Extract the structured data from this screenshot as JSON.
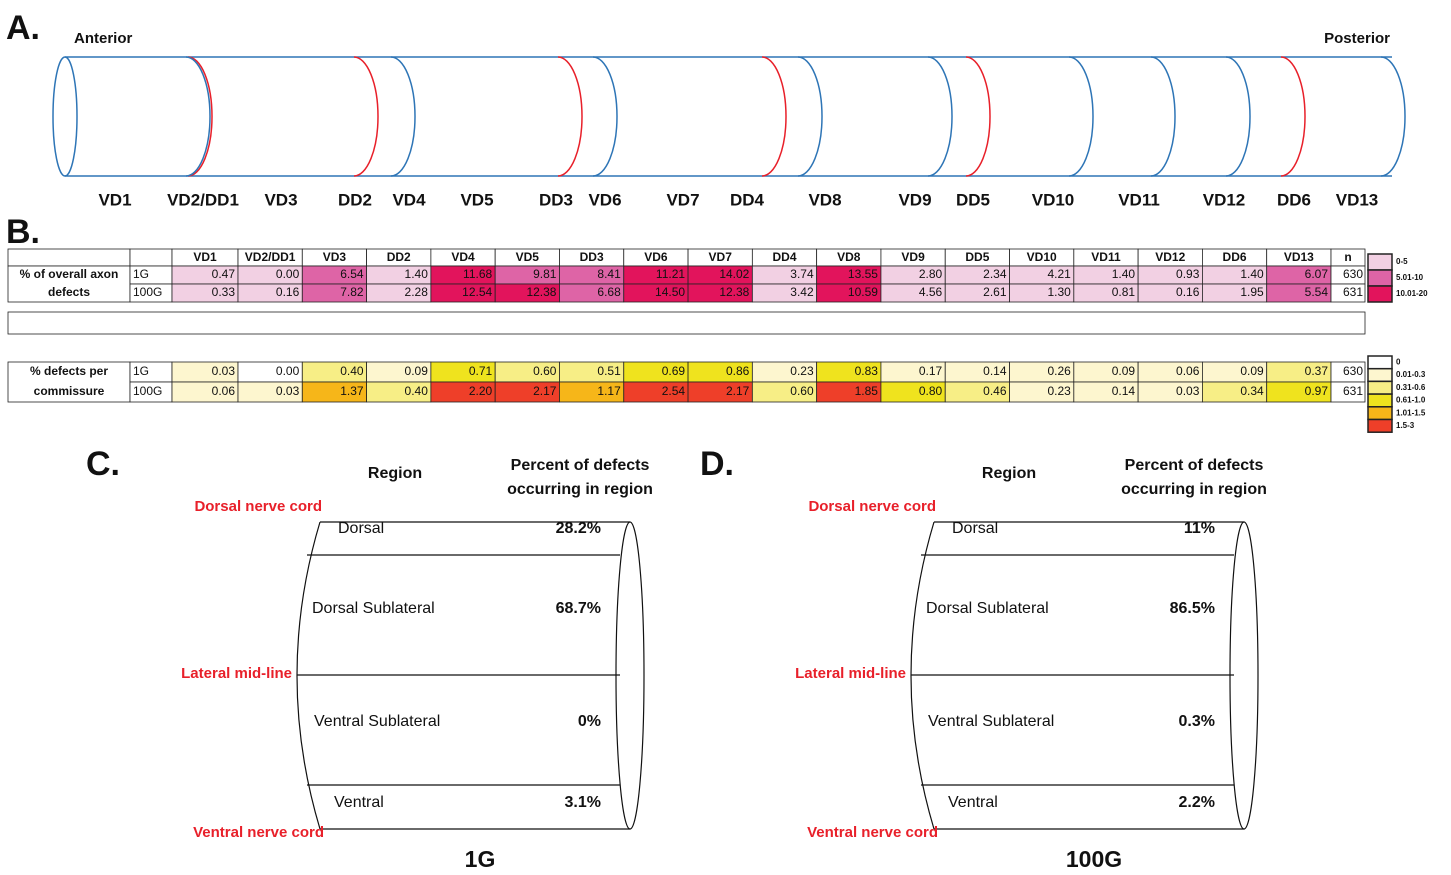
{
  "panel_a": {
    "label": "A.",
    "anterior": "Anterior",
    "posterior": "Posterior",
    "commissures": [
      "VD1",
      "VD2/DD1",
      "VD3",
      "DD2",
      "VD4",
      "VD5",
      "DD3",
      "VD6",
      "VD7",
      "DD4",
      "VD8",
      "VD9",
      "DD5",
      "VD10",
      "VD11",
      "VD12",
      "DD6",
      "VD13"
    ]
  },
  "panel_b": {
    "label": "B.",
    "columns": [
      "VD1",
      "VD2/DD1",
      "VD3",
      "DD2",
      "VD4",
      "VD5",
      "DD3",
      "VD6",
      "VD7",
      "DD4",
      "VD8",
      "VD9",
      "DD5",
      "VD10",
      "VD11",
      "VD12",
      "DD6",
      "VD13",
      "n"
    ],
    "sections": [
      {
        "label_lines": [
          "% of overall axon",
          "defects"
        ],
        "rows": [
          {
            "group": "1G",
            "values": [
              "0.47",
              "0.00",
              "6.54",
              "1.40",
              "11.68",
              "9.81",
              "8.41",
              "11.21",
              "14.02",
              "3.74",
              "13.55",
              "2.80",
              "2.34",
              "4.21",
              "1.40",
              "0.93",
              "1.40",
              "6.07"
            ],
            "n": "630"
          },
          {
            "group": "100G",
            "values": [
              "0.33",
              "0.16",
              "7.82",
              "2.28",
              "12.54",
              "12.38",
              "6.68",
              "14.50",
              "12.38",
              "3.42",
              "10.59",
              "4.56",
              "2.61",
              "1.30",
              "0.81",
              "0.16",
              "1.95",
              "5.54"
            ],
            "n": "631"
          }
        ],
        "legend": [
          {
            "label": "0-5",
            "color": "#f2d0e3"
          },
          {
            "label": "5.01-10",
            "color": "#de64a6"
          },
          {
            "label": "10.01-20",
            "color": "#e2145c"
          }
        ]
      },
      {
        "label_lines": [
          "% defects per",
          "commissure"
        ],
        "rows": [
          {
            "group": "1G",
            "values": [
              "0.03",
              "0.00",
              "0.40",
              "0.09",
              "0.71",
              "0.60",
              "0.51",
              "0.69",
              "0.86",
              "0.23",
              "0.83",
              "0.17",
              "0.14",
              "0.26",
              "0.09",
              "0.06",
              "0.09",
              "0.37"
            ],
            "n": "630"
          },
          {
            "group": "100G",
            "values": [
              "0.06",
              "0.03",
              "1.37",
              "0.40",
              "2.20",
              "2.17",
              "1.17",
              "2.54",
              "2.17",
              "0.60",
              "1.85",
              "0.80",
              "0.46",
              "0.23",
              "0.14",
              "0.03",
              "0.34",
              "0.97"
            ],
            "n": "631"
          }
        ],
        "legend": [
          {
            "label": "0",
            "color": "#ffffff"
          },
          {
            "label": "0.01-0.3",
            "color": "#fdf6cf"
          },
          {
            "label": "0.31-0.6",
            "color": "#f7ee86"
          },
          {
            "label": "0.61-1.0",
            "color": "#efe31e"
          },
          {
            "label": "1.01-1.5",
            "color": "#f6b619"
          },
          {
            "label": "1.5-3",
            "color": "#ee3f29"
          }
        ]
      }
    ]
  },
  "panels_cd": [
    {
      "label": "C.",
      "region_header": "Region",
      "percent_header": [
        "Percent of defects",
        "occurring in region"
      ],
      "side_labels": [
        "Dorsal nerve cord",
        "Lateral mid-line",
        "Ventral nerve cord"
      ],
      "regions": [
        {
          "name": "Dorsal",
          "percent": "28.2%"
        },
        {
          "name": "Dorsal Sublateral",
          "percent": "68.7%"
        },
        {
          "name": "Ventral Sublateral",
          "percent": "0%"
        },
        {
          "name": "Ventral",
          "percent": "3.1%"
        }
      ],
      "caption": "1G"
    },
    {
      "label": "D.",
      "region_header": "Region",
      "percent_header": [
        "Percent of defects",
        "occurring in region"
      ],
      "side_labels": [
        "Dorsal nerve cord",
        "Lateral mid-line",
        "Ventral nerve cord"
      ],
      "regions": [
        {
          "name": "Dorsal",
          "percent": "11%"
        },
        {
          "name": "Dorsal Sublateral",
          "percent": "86.5%"
        },
        {
          "name": "Ventral Sublateral",
          "percent": "0.3%"
        },
        {
          "name": "Ventral",
          "percent": "2.2%"
        }
      ],
      "caption": "100G"
    }
  ]
}
